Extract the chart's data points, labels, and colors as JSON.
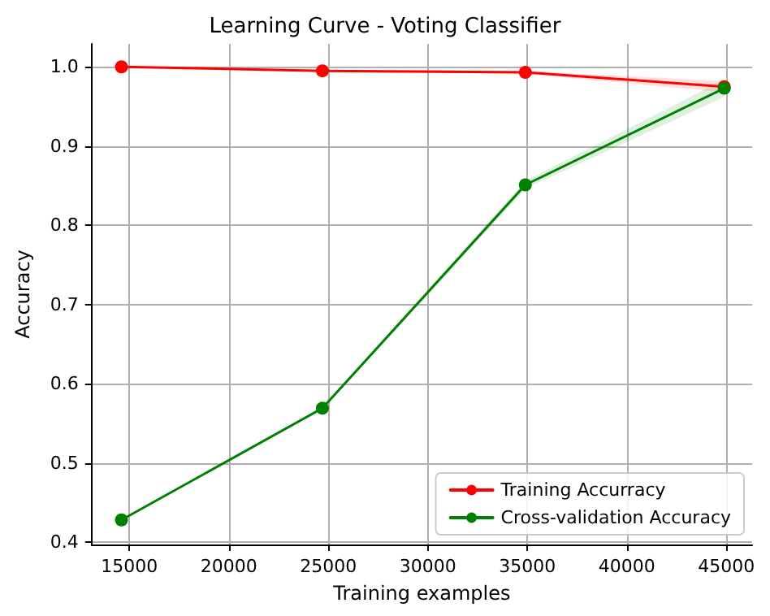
{
  "chart_data": {
    "type": "line",
    "title": "Learning Curve - Voting Classifier",
    "xlabel": "Training examples",
    "ylabel": "Accuracy",
    "x": [
      14600,
      24700,
      34900,
      44900
    ],
    "series": [
      {
        "name": "Training Accurracy",
        "color": "#ff0000",
        "values": [
          1.0,
          0.995,
          0.993,
          0.975
        ],
        "lower": [
          1.0,
          0.994,
          0.991,
          0.968
        ],
        "upper": [
          1.0,
          0.996,
          0.995,
          0.982
        ]
      },
      {
        "name": "Cross-validation Accuracy",
        "color": "#008000",
        "values": [
          0.428,
          0.569,
          0.851,
          0.973
        ],
        "lower": [
          0.428,
          0.568,
          0.846,
          0.962
        ],
        "upper": [
          0.428,
          0.57,
          0.856,
          0.984
        ]
      }
    ],
    "xlim": [
      13100,
      46300
    ],
    "xticks": [
      15000,
      20000,
      25000,
      30000,
      35000,
      40000,
      45000
    ],
    "ylim": [
      0.397,
      1.029
    ],
    "yticks": [
      0.4,
      0.5,
      0.6,
      0.7,
      0.8,
      0.9,
      {
        "value": 1.0,
        "label": "1.0"
      }
    ],
    "grid": true,
    "legend": "bottom right",
    "marker": "circle",
    "line_style": "solid"
  }
}
